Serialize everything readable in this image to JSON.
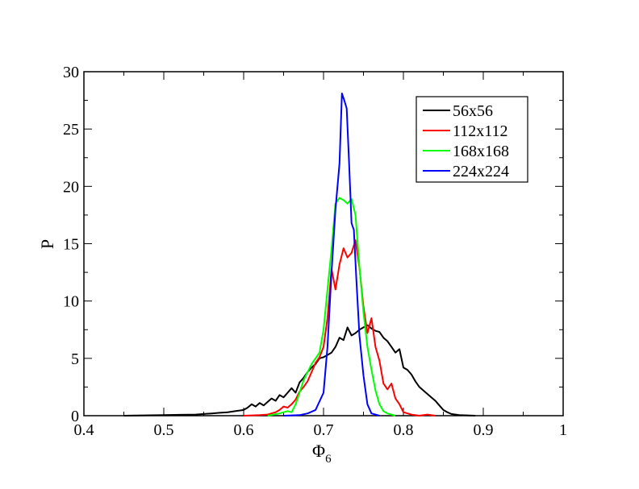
{
  "chart_data": {
    "type": "line",
    "xlabel": "Φ",
    "xlabel_sub": "6",
    "ylabel": "P",
    "xlim": [
      0.4,
      1.0
    ],
    "ylim": [
      0,
      30
    ],
    "x_ticks": [
      "0.4",
      "0.5",
      "0.6",
      "0.7",
      "0.8",
      "0.9",
      "1"
    ],
    "y_ticks": [
      "0",
      "5",
      "10",
      "15",
      "20",
      "25",
      "30"
    ],
    "grid": false,
    "legend_position": "top-right",
    "series": [
      {
        "name": "56x56",
        "color": "#000000",
        "points": [
          [
            0.45,
            0.0
          ],
          [
            0.5,
            0.05
          ],
          [
            0.52,
            0.08
          ],
          [
            0.54,
            0.1
          ],
          [
            0.55,
            0.15
          ],
          [
            0.56,
            0.2
          ],
          [
            0.57,
            0.25
          ],
          [
            0.58,
            0.3
          ],
          [
            0.59,
            0.4
          ],
          [
            0.6,
            0.5
          ],
          [
            0.605,
            0.7
          ],
          [
            0.61,
            1.0
          ],
          [
            0.615,
            0.8
          ],
          [
            0.62,
            1.1
          ],
          [
            0.625,
            0.9
          ],
          [
            0.63,
            1.2
          ],
          [
            0.635,
            1.5
          ],
          [
            0.64,
            1.3
          ],
          [
            0.645,
            1.8
          ],
          [
            0.65,
            1.6
          ],
          [
            0.655,
            2.0
          ],
          [
            0.66,
            2.4
          ],
          [
            0.665,
            2.0
          ],
          [
            0.67,
            2.9
          ],
          [
            0.675,
            3.3
          ],
          [
            0.68,
            3.8
          ],
          [
            0.685,
            4.2
          ],
          [
            0.69,
            4.5
          ],
          [
            0.695,
            5.0
          ],
          [
            0.7,
            5.1
          ],
          [
            0.705,
            5.3
          ],
          [
            0.71,
            5.5
          ],
          [
            0.715,
            6.0
          ],
          [
            0.72,
            6.8
          ],
          [
            0.725,
            6.6
          ],
          [
            0.73,
            7.7
          ],
          [
            0.735,
            7.0
          ],
          [
            0.74,
            7.2
          ],
          [
            0.745,
            7.5
          ],
          [
            0.75,
            7.7
          ],
          [
            0.755,
            7.9
          ],
          [
            0.76,
            7.6
          ],
          [
            0.765,
            7.4
          ],
          [
            0.77,
            7.3
          ],
          [
            0.775,
            6.8
          ],
          [
            0.78,
            6.5
          ],
          [
            0.785,
            6.0
          ],
          [
            0.79,
            5.5
          ],
          [
            0.795,
            5.8
          ],
          [
            0.8,
            4.2
          ],
          [
            0.805,
            4.0
          ],
          [
            0.81,
            3.6
          ],
          [
            0.815,
            3.0
          ],
          [
            0.82,
            2.5
          ],
          [
            0.825,
            2.2
          ],
          [
            0.83,
            1.9
          ],
          [
            0.835,
            1.6
          ],
          [
            0.84,
            1.3
          ],
          [
            0.845,
            0.9
          ],
          [
            0.85,
            0.5
          ],
          [
            0.855,
            0.3
          ],
          [
            0.86,
            0.15
          ],
          [
            0.87,
            0.05
          ],
          [
            0.89,
            0.0
          ]
        ]
      },
      {
        "name": "112x112",
        "color": "#ff0000",
        "points": [
          [
            0.6,
            0.0
          ],
          [
            0.62,
            0.05
          ],
          [
            0.63,
            0.1
          ],
          [
            0.64,
            0.3
          ],
          [
            0.645,
            0.5
          ],
          [
            0.65,
            0.8
          ],
          [
            0.655,
            0.7
          ],
          [
            0.66,
            1.0
          ],
          [
            0.665,
            1.4
          ],
          [
            0.67,
            2.1
          ],
          [
            0.675,
            2.5
          ],
          [
            0.68,
            3.0
          ],
          [
            0.685,
            3.8
          ],
          [
            0.69,
            4.6
          ],
          [
            0.695,
            5.1
          ],
          [
            0.7,
            6.0
          ],
          [
            0.705,
            8.5
          ],
          [
            0.71,
            12.8
          ],
          [
            0.715,
            11.0
          ],
          [
            0.72,
            13.2
          ],
          [
            0.725,
            14.6
          ],
          [
            0.73,
            13.8
          ],
          [
            0.735,
            14.2
          ],
          [
            0.74,
            15.3
          ],
          [
            0.745,
            12.9
          ],
          [
            0.75,
            9.5
          ],
          [
            0.755,
            7.2
          ],
          [
            0.76,
            8.5
          ],
          [
            0.765,
            6.0
          ],
          [
            0.77,
            4.8
          ],
          [
            0.775,
            2.8
          ],
          [
            0.78,
            2.3
          ],
          [
            0.785,
            2.8
          ],
          [
            0.79,
            1.5
          ],
          [
            0.795,
            1.0
          ],
          [
            0.8,
            0.3
          ],
          [
            0.81,
            0.1
          ],
          [
            0.82,
            0.0
          ],
          [
            0.83,
            0.1
          ],
          [
            0.84,
            0.0
          ]
        ]
      },
      {
        "name": "168x168",
        "color": "#00ff00",
        "points": [
          [
            0.63,
            0.0
          ],
          [
            0.645,
            0.2
          ],
          [
            0.655,
            0.4
          ],
          [
            0.66,
            0.3
          ],
          [
            0.665,
            1.0
          ],
          [
            0.67,
            2.0
          ],
          [
            0.675,
            3.1
          ],
          [
            0.68,
            3.8
          ],
          [
            0.685,
            4.5
          ],
          [
            0.69,
            5.0
          ],
          [
            0.695,
            5.5
          ],
          [
            0.7,
            7.5
          ],
          [
            0.705,
            11.0
          ],
          [
            0.71,
            14.5
          ],
          [
            0.715,
            18.5
          ],
          [
            0.72,
            19.0
          ],
          [
            0.725,
            18.8
          ],
          [
            0.73,
            18.5
          ],
          [
            0.735,
            18.9
          ],
          [
            0.74,
            17.5
          ],
          [
            0.745,
            13.0
          ],
          [
            0.75,
            9.0
          ],
          [
            0.755,
            6.0
          ],
          [
            0.76,
            4.0
          ],
          [
            0.765,
            2.2
          ],
          [
            0.77,
            1.0
          ],
          [
            0.775,
            0.4
          ],
          [
            0.78,
            0.2
          ],
          [
            0.785,
            0.1
          ],
          [
            0.79,
            0.0
          ]
        ]
      },
      {
        "name": "224x224",
        "color": "#0000ff",
        "points": [
          [
            0.65,
            0.0
          ],
          [
            0.67,
            0.05
          ],
          [
            0.68,
            0.2
          ],
          [
            0.69,
            0.5
          ],
          [
            0.7,
            2.0
          ],
          [
            0.705,
            6.0
          ],
          [
            0.71,
            12.5
          ],
          [
            0.715,
            18.0
          ],
          [
            0.72,
            22.0
          ],
          [
            0.723,
            28.1
          ],
          [
            0.726,
            27.5
          ],
          [
            0.729,
            26.8
          ],
          [
            0.732,
            22.0
          ],
          [
            0.735,
            16.8
          ],
          [
            0.738,
            16.2
          ],
          [
            0.741,
            12.0
          ],
          [
            0.745,
            7.0
          ],
          [
            0.75,
            3.5
          ],
          [
            0.755,
            1.0
          ],
          [
            0.76,
            0.2
          ],
          [
            0.77,
            0.0
          ]
        ]
      }
    ]
  }
}
